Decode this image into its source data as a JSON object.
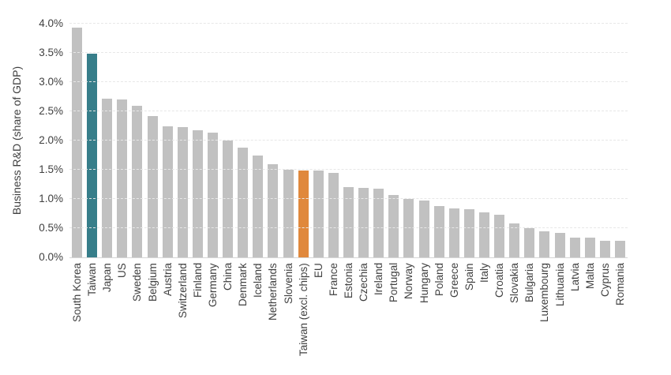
{
  "chart_data": {
    "type": "bar",
    "ylabel": "Business R&D (share of GDP)",
    "ylim": [
      0,
      4.0
    ],
    "grid": true,
    "legend": "none",
    "ytick_labels": [
      "0.0%",
      "0.5%",
      "1.0%",
      "1.5%",
      "2.0%",
      "2.5%",
      "3.0%",
      "3.5%",
      "4.0%"
    ],
    "ytick_values": [
      0,
      0.5,
      1.0,
      1.5,
      2.0,
      2.5,
      3.0,
      3.5,
      4.0
    ],
    "categories": [
      "South Korea",
      "Taiwan",
      "Japan",
      "US",
      "Sweden",
      "Belgium",
      "Austria",
      "Switzerland",
      "Finland",
      "Germany",
      "China",
      "Denmark",
      "Iceland",
      "Netherlands",
      "Slovenia",
      "Taiwan (excl. chips)",
      "EU",
      "France",
      "Estonia",
      "Czechia",
      "Ireland",
      "Portugal",
      "Norway",
      "Hungary",
      "Poland",
      "Greece",
      "Spain",
      "Italy",
      "Croatia",
      "Slovakia",
      "Bulgaria",
      "Luxembourg",
      "Lithuania",
      "Latvia",
      "Malta",
      "Cyprus",
      "Romania"
    ],
    "values": [
      3.93,
      3.49,
      2.72,
      2.7,
      2.6,
      2.42,
      2.25,
      2.23,
      2.18,
      2.13,
      2.0,
      1.88,
      1.75,
      1.6,
      1.5,
      1.49,
      1.49,
      1.44,
      1.2,
      1.19,
      1.17,
      1.07,
      1.0,
      0.97,
      0.88,
      0.84,
      0.83,
      0.77,
      0.73,
      0.58,
      0.5,
      0.45,
      0.42,
      0.34,
      0.34,
      0.28,
      0.28
    ],
    "bar_default_color": "#C1C1C1",
    "highlights": [
      {
        "category": "Taiwan",
        "color": "#377E8A"
      },
      {
        "category": "Taiwan (excl. chips)",
        "color": "#E0883C"
      }
    ]
  }
}
